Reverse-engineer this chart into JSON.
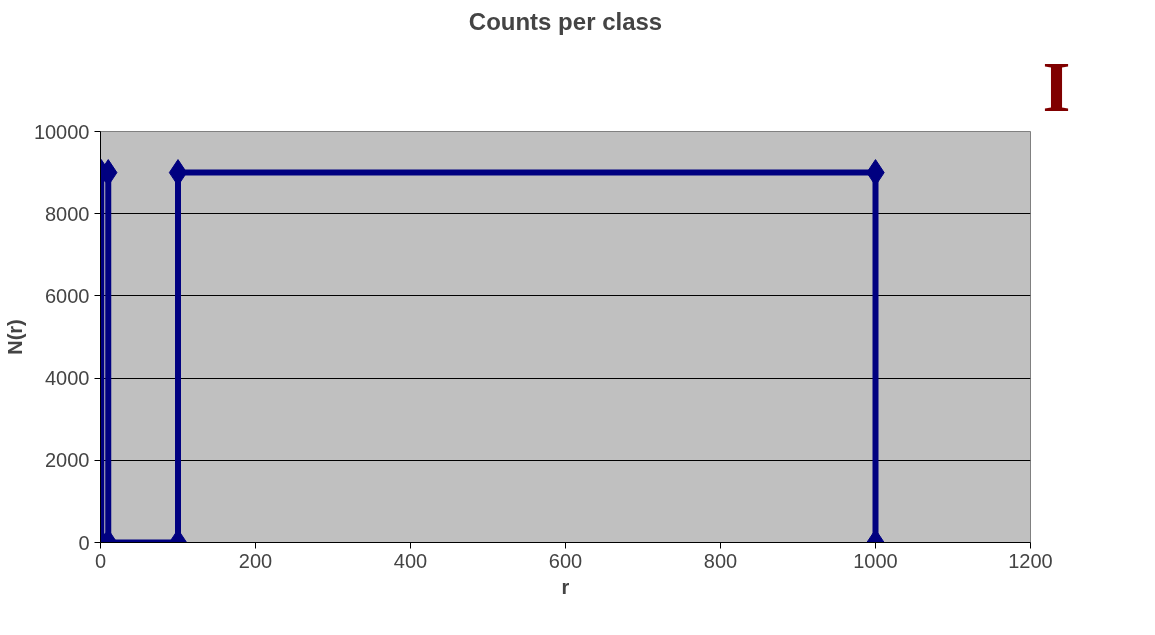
{
  "chart_data": {
    "type": "line",
    "title": "Counts per class",
    "xlabel": "r",
    "ylabel": "N(r)",
    "x": [
      1,
      1,
      10,
      10,
      100,
      100,
      1000,
      1000
    ],
    "series": [
      {
        "color": "#000080",
        "values": [
          0,
          9000,
          9000,
          0,
          0,
          9000,
          9000,
          0
        ]
      }
    ],
    "xlim": [
      0,
      1200
    ],
    "xticks": [
      0,
      200,
      400,
      600,
      800,
      1000,
      1200
    ],
    "ylim": [
      0,
      10000
    ],
    "yticks": [
      0,
      2000,
      4000,
      6000,
      8000,
      10000
    ],
    "grid": "y",
    "marker": "diamond",
    "line_style": "solid",
    "annotations": [
      "I"
    ]
  }
}
